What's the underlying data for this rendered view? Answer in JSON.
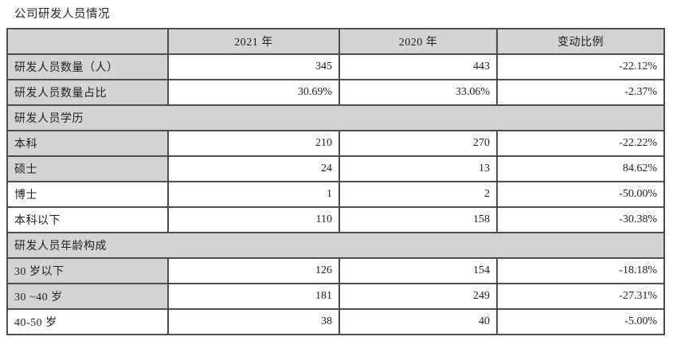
{
  "page": {
    "title": "公司研发人员情况"
  },
  "colors": {
    "shaded_cell": "#d4d4d4",
    "border": "#4c4c4c",
    "text": "#1f1f1f",
    "background": "#ffffff"
  },
  "table": {
    "columns": [
      "",
      "2021 年",
      "2020 年",
      "变动比例"
    ],
    "rows": [
      {
        "type": "data",
        "label": "研发人员数量（人）",
        "v2021": "345",
        "v2020": "443",
        "change": "-22.12%",
        "label_shaded": true
      },
      {
        "type": "data",
        "label": "研发人员数量占比",
        "v2021": "30.69%",
        "v2020": "33.06%",
        "change": "-2.37%",
        "label_shaded": true
      },
      {
        "type": "section",
        "label": "研发人员学历"
      },
      {
        "type": "data",
        "label": "本科",
        "v2021": "210",
        "v2020": "270",
        "change": "-22.22%",
        "label_shaded": true
      },
      {
        "type": "data",
        "label": "硕士",
        "v2021": "24",
        "v2020": "13",
        "change": "84.62%",
        "label_shaded": true
      },
      {
        "type": "data",
        "label": "博士",
        "v2021": "1",
        "v2020": "2",
        "change": "-50.00%",
        "label_shaded": false
      },
      {
        "type": "data",
        "label": "本科以下",
        "v2021": "110",
        "v2020": "158",
        "change": "-30.38%",
        "label_shaded": false
      },
      {
        "type": "section",
        "label": "研发人员年龄构成"
      },
      {
        "type": "data",
        "label": "30 岁以下",
        "v2021": "126",
        "v2020": "154",
        "change": "-18.18%",
        "label_shaded": true
      },
      {
        "type": "data",
        "label": "30 ~40 岁",
        "v2021": "181",
        "v2020": "249",
        "change": "-27.31%",
        "label_shaded": true
      },
      {
        "type": "data",
        "label": "40-50 岁",
        "v2021": "38",
        "v2020": "40",
        "change": "-5.00%",
        "label_shaded": false
      }
    ]
  }
}
